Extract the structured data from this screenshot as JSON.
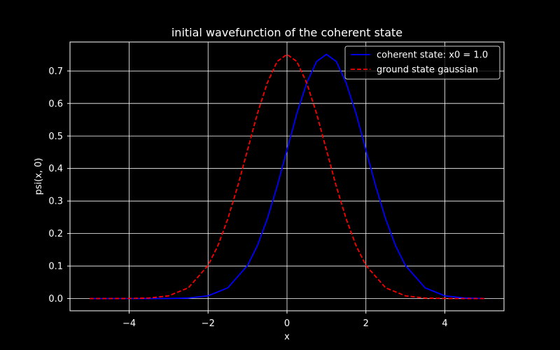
{
  "chart_data": {
    "type": "line",
    "title": "initial wavefunction of the coherent state",
    "xlabel": "x",
    "ylabel": "psi(x, 0)",
    "xlim": [
      -5.5,
      5.5
    ],
    "ylim": [
      -0.0376,
      0.789
    ],
    "xticks": [
      -4,
      -2,
      0,
      2,
      4
    ],
    "xtick_labels": [
      "−4",
      "−2",
      "0",
      "2",
      "4"
    ],
    "yticks": [
      0.0,
      0.1,
      0.2,
      0.3,
      0.4,
      0.5,
      0.6,
      0.7
    ],
    "ytick_labels": [
      "0.0",
      "0.1",
      "0.2",
      "0.3",
      "0.4",
      "0.5",
      "0.6",
      "0.7"
    ],
    "grid": true,
    "legend_position": "top-right",
    "background": "#000000",
    "foreground": "#ffffff",
    "series": [
      {
        "name": "coherent state: x0 = 1.0",
        "color": "#0000ff",
        "style": "solid",
        "x": [
          -5.0,
          -4.5,
          -4.0,
          -3.5,
          -3.0,
          -2.5,
          -2.0,
          -1.5,
          -1.0,
          -0.75,
          -0.5,
          -0.25,
          0.0,
          0.25,
          0.5,
          0.75,
          1.0,
          1.25,
          1.5,
          1.75,
          2.0,
          2.25,
          2.5,
          2.75,
          3.0,
          3.5,
          4.0,
          4.5,
          5.0
        ],
        "y": [
          0.0,
          0.0,
          0.0,
          0.0,
          0.0003,
          0.0016,
          0.0084,
          0.033,
          0.102,
          0.163,
          0.245,
          0.345,
          0.457,
          0.569,
          0.663,
          0.729,
          0.751,
          0.729,
          0.663,
          0.569,
          0.457,
          0.345,
          0.245,
          0.163,
          0.102,
          0.033,
          0.0084,
          0.0016,
          0.0003
        ]
      },
      {
        "name": "ground state gaussian",
        "color": "#ff0000",
        "style": "dashed",
        "x": [
          -5.0,
          -4.5,
          -4.0,
          -3.5,
          -3.0,
          -2.5,
          -2.0,
          -1.75,
          -1.5,
          -1.25,
          -1.0,
          -0.75,
          -0.5,
          -0.25,
          0.0,
          0.25,
          0.5,
          0.75,
          1.0,
          1.25,
          1.5,
          1.75,
          2.0,
          2.5,
          3.0,
          3.5,
          4.0,
          4.5,
          5.0
        ],
        "y": [
          0.0,
          0.0,
          0.0003,
          0.0016,
          0.0084,
          0.033,
          0.102,
          0.163,
          0.245,
          0.345,
          0.457,
          0.569,
          0.663,
          0.729,
          0.751,
          0.729,
          0.663,
          0.569,
          0.457,
          0.345,
          0.245,
          0.163,
          0.102,
          0.033,
          0.0084,
          0.0016,
          0.0003,
          0.0,
          0.0
        ]
      }
    ]
  }
}
